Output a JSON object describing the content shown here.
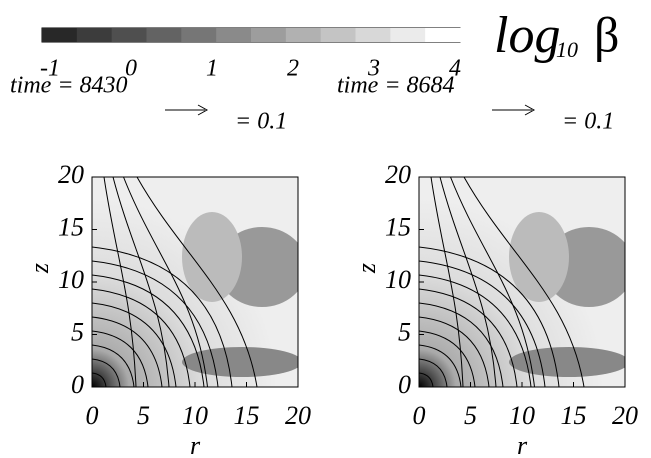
{
  "colorbar": {
    "label": "log",
    "label_sub": "10",
    "label_symbol": "β",
    "lim": [
      -1,
      4
    ],
    "ticks": [
      -1,
      0,
      1,
      2,
      3,
      4
    ]
  },
  "panels": [
    {
      "title": "time = 8430",
      "arrow_label": "= 0.1",
      "xlabel": "r",
      "ylabel": "z",
      "xlim": [
        0,
        20
      ],
      "ylim": [
        0,
        20
      ],
      "xticks": [
        0,
        5,
        10,
        15,
        20
      ],
      "yticks": [
        0,
        5,
        10,
        15,
        20
      ]
    },
    {
      "title": "time = 8684",
      "arrow_label": "= 0.1",
      "xlabel": "r",
      "ylabel": "z",
      "xlim": [
        0,
        20
      ],
      "ylim": [
        0,
        20
      ],
      "xticks": [
        0,
        5,
        10,
        15,
        20
      ],
      "yticks": [
        0,
        5,
        10,
        15,
        20
      ]
    }
  ]
}
